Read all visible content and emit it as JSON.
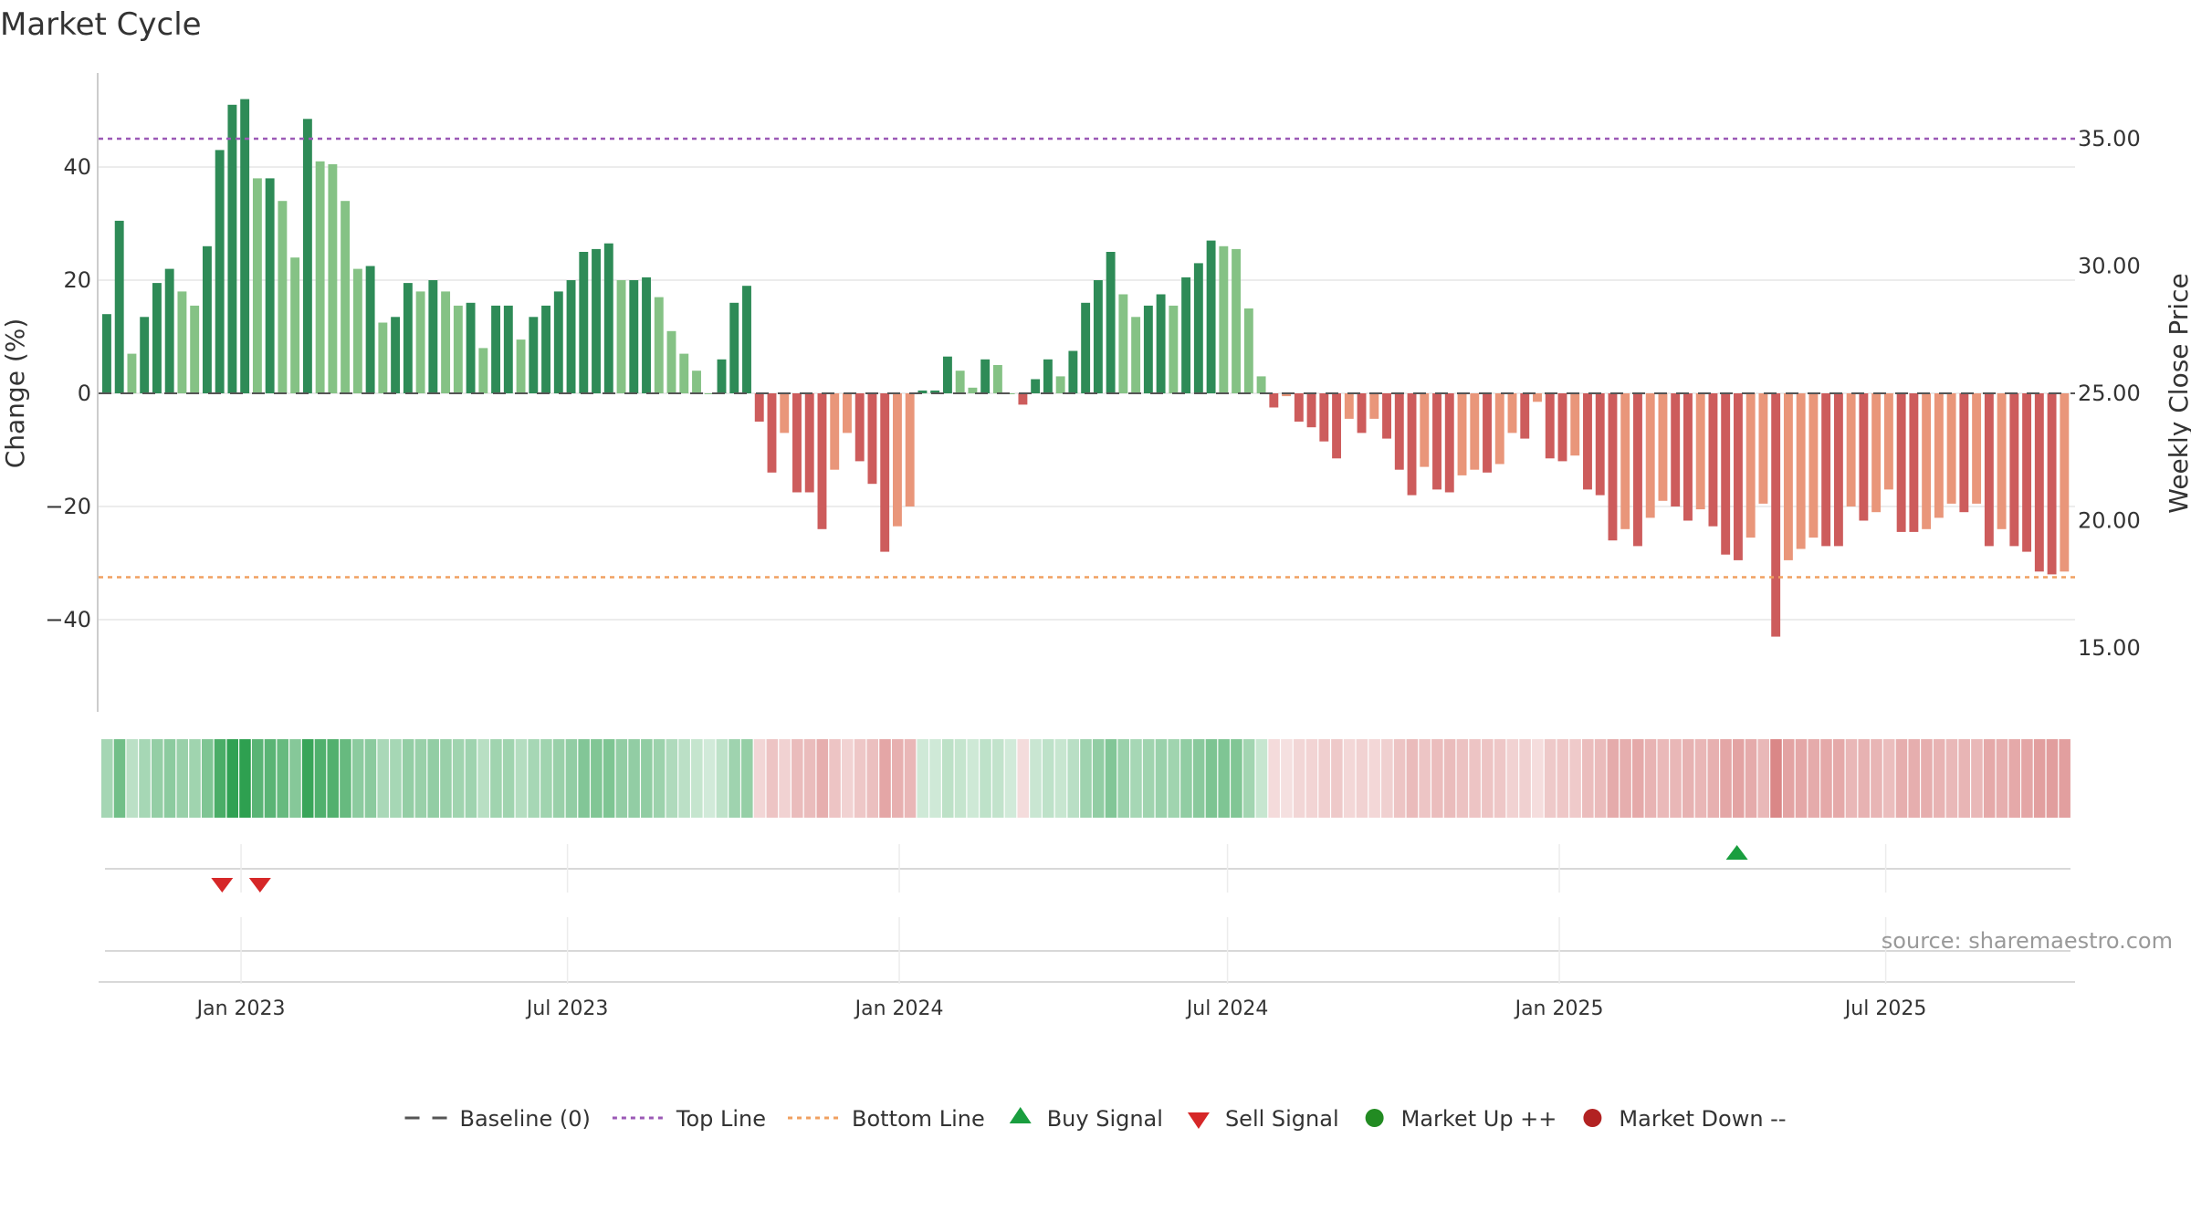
{
  "chart_data": {
    "type": "bar",
    "title": "Market Cycle",
    "y_left_label": "Change (%)",
    "y_right_label": "Weekly Close Price",
    "y_left_ticks": [
      "−40",
      "−20",
      "0",
      "20",
      "40"
    ],
    "y_left_tick_values": [
      -40,
      -20,
      0,
      20,
      40
    ],
    "y_left_range": [
      -56,
      56
    ],
    "y_right_ticks": [
      "15.00",
      "20.00",
      "25.00",
      "30.00",
      "35.00"
    ],
    "y_right_tick_values": [
      15,
      20,
      25,
      30,
      35
    ],
    "top_line": 45,
    "bottom_line": -32.5,
    "x_ticks": [
      "Jan 2023",
      "Jul 2023",
      "Jan 2024",
      "Jul 2024",
      "Jan 2025",
      "Jul 2025"
    ],
    "x_tick_dates": [
      "2023-01-01",
      "2023-07-01",
      "2024-01-01",
      "2024-07-01",
      "2025-01-01",
      "2025-07-01"
    ],
    "x_range": [
      "2022-10-14",
      "2025-10-14"
    ],
    "first_week": "2022-10-17",
    "weekly_change": [
      14,
      30.5,
      7,
      13.5,
      19.5,
      22,
      18,
      15.5,
      26,
      43,
      51,
      52,
      38,
      38,
      34,
      24,
      48.5,
      41,
      40.5,
      34,
      22,
      22.5,
      12.5,
      13.5,
      19.5,
      18,
      20,
      18,
      15.5,
      16,
      8,
      15.5,
      15.5,
      9.5,
      13.5,
      15.5,
      18,
      20,
      25,
      25.5,
      26.5,
      20,
      20,
      20.5,
      17,
      11,
      7,
      4,
      0,
      6,
      16,
      19,
      -5,
      -14,
      -7,
      -17.5,
      -17.5,
      -24,
      -13.5,
      -7,
      -12,
      -16,
      -28,
      -23.5,
      -20,
      0.5,
      0.5,
      6.5,
      4,
      1,
      6,
      5,
      0,
      -2,
      2.5,
      6,
      3,
      7.5,
      16,
      20,
      25,
      17.5,
      13.5,
      15.5,
      17.5,
      15.5,
      20.5,
      23,
      27,
      26,
      25.5,
      15,
      3,
      -2.5,
      -0.5,
      -5,
      -6,
      -8.5,
      -11.5,
      -4.5,
      -7,
      -4.5,
      -8,
      -13.5,
      -18,
      -13,
      -17,
      -17.5,
      -14.5,
      -13.5,
      -14,
      -12.5,
      -7,
      -8,
      -1.5,
      -11.5,
      -12,
      -11,
      -17,
      -18,
      -26,
      -24,
      -27,
      -22,
      -19,
      -20,
      -22.5,
      -20.5,
      -23.5,
      -28.5,
      -29.5,
      -25.5,
      -19.5,
      -43,
      -29.5,
      -27.5,
      -25.5,
      -27,
      -27,
      -20,
      -22.5,
      -21,
      -17,
      -24.5,
      -24.5,
      -24,
      -22,
      -19.5,
      -21,
      -19.5,
      -27,
      -24,
      -27,
      -28,
      -31.5,
      -32,
      -31.5
    ],
    "series_colors": {
      "up_strong": "#2e8b57",
      "up_weak": "#85c285",
      "down_strong": "#cd5c5c",
      "down_weak": "#e9967a"
    },
    "top_line_color": "#9b59b6",
    "bottom_line_color": "#f0a060",
    "baseline_color": "#555555",
    "buy_color": "#1a9e3f",
    "sell_color": "#d62728",
    "market_up_color": "#228b22",
    "market_down_color": "#b22222",
    "buy_signals": [
      "2025-04-07"
    ],
    "sell_signals": [
      "2022-12-19",
      "2023-01-09"
    ],
    "legend": [
      {
        "key": "baseline",
        "label": "Baseline (0)"
      },
      {
        "key": "top",
        "label": "Top Line"
      },
      {
        "key": "bottom",
        "label": "Bottom Line"
      },
      {
        "key": "buy",
        "label": "Buy Signal"
      },
      {
        "key": "sell",
        "label": "Sell Signal"
      },
      {
        "key": "up",
        "label": "Market Up ++"
      },
      {
        "key": "down",
        "label": "Market Down --"
      }
    ],
    "legend_position": "bottom-center",
    "source": "source: sharemaestro.com",
    "grid": true
  }
}
